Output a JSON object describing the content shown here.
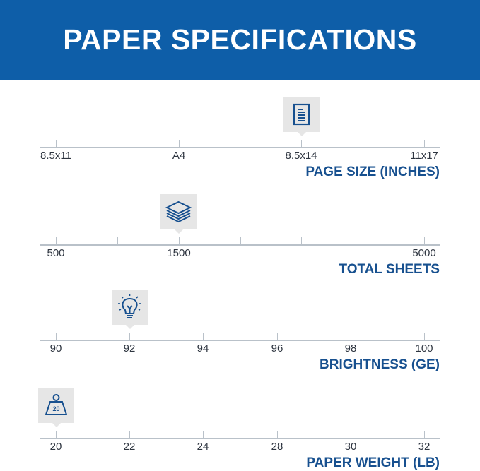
{
  "header": {
    "title": "PAPER SPECIFICATIONS"
  },
  "colors": {
    "header_bg": "#0e5ea8",
    "accent_text": "#17508f",
    "marker_bg": "#e6e6e6",
    "axis": "#b9c1c9"
  },
  "scales": [
    {
      "title": "PAGE SIZE (INCHES)",
      "icon": "document-icon",
      "ticks": [
        "8.5x11",
        "A4",
        "8.5x14",
        "11x17"
      ],
      "selected": "8.5x14",
      "selected_index": 2
    },
    {
      "title": "TOTAL SHEETS",
      "icon": "paper-stack-icon",
      "ticks": [
        "500",
        "",
        "1500",
        "",
        "",
        "",
        "5000"
      ],
      "selected": "1500",
      "selected_index": 2
    },
    {
      "title": "BRIGHTNESS (GE)",
      "icon": "lightbulb-icon",
      "ticks": [
        "90",
        "92",
        "94",
        "96",
        "98",
        "100"
      ],
      "selected": "92",
      "selected_index": 1
    },
    {
      "title": "PAPER WEIGHT (LB)",
      "icon": "weight-icon",
      "icon_text": "20",
      "ticks": [
        "20",
        "22",
        "24",
        "28",
        "30",
        "32"
      ],
      "selected": "20",
      "selected_index": 0
    }
  ]
}
